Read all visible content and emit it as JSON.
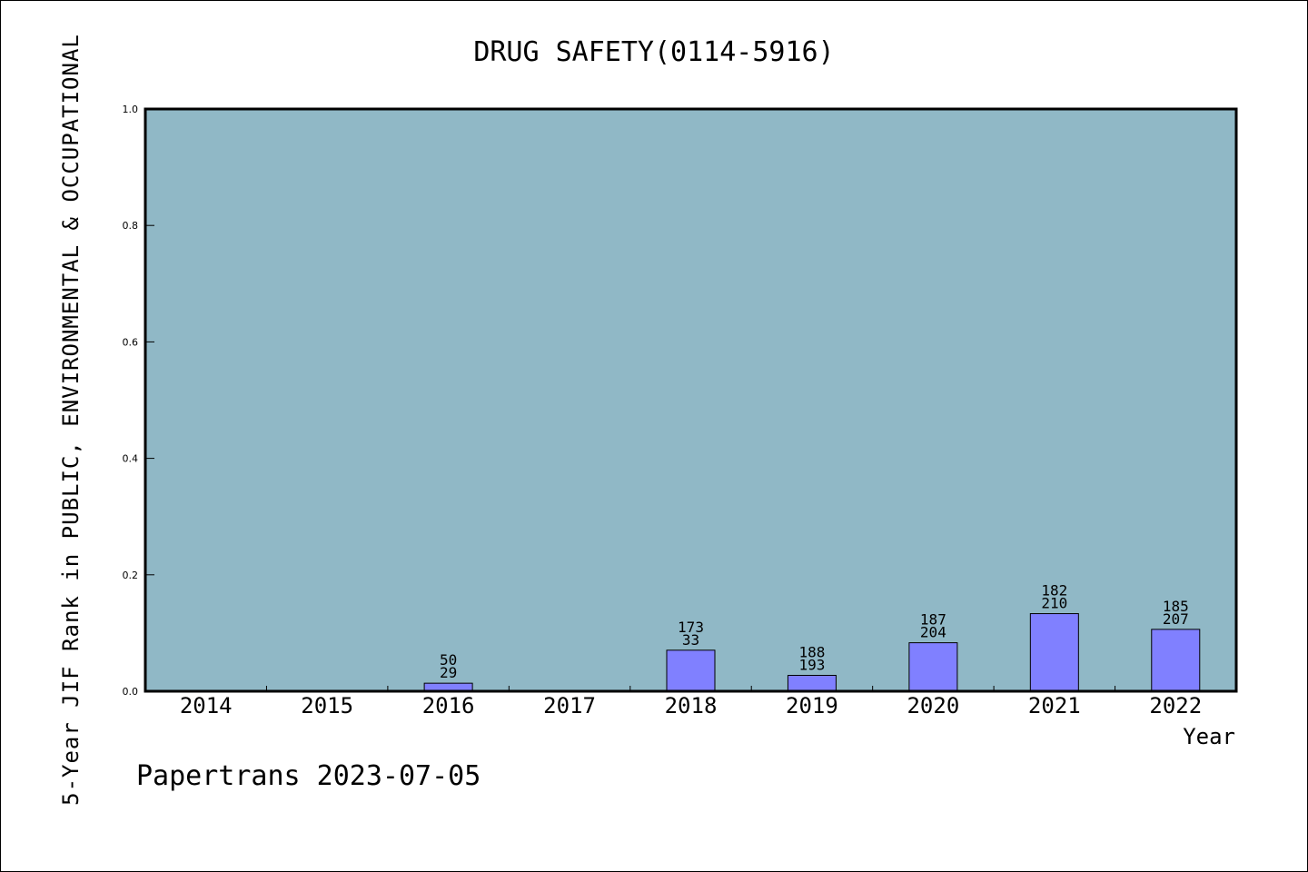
{
  "chart_data": {
    "type": "bar",
    "title": "DRUG SAFETY(0114-5916)",
    "ylabel": "5-Year JIF Rank in PUBLIC, ENVIRONMENTAL & OCCUPATIONAL",
    "xlabel": "Year",
    "ylim": [
      0,
      1.0
    ],
    "yticks": [
      0.0,
      0.2,
      0.4,
      0.6,
      0.8,
      1.0
    ],
    "categories": [
      "2014",
      "2015",
      "2016",
      "2017",
      "2018",
      "2019",
      "2020",
      "2021",
      "2022"
    ],
    "values": [
      null,
      null,
      0.0138,
      null,
      0.0705,
      0.0273,
      0.0833,
      0.1333,
      0.1063
    ],
    "label_top": [
      "",
      "",
      "50",
      "",
      "173",
      "188",
      "187",
      "182",
      "185"
    ],
    "label_bottom": [
      "",
      "",
      "29",
      "",
      "33",
      "193",
      "204",
      "210",
      "207"
    ],
    "plot_background": "#90b8c6",
    "bar_color": "#8080ff",
    "grid": false,
    "legend": "none"
  },
  "footer": "Papertrans 2023-07-05"
}
